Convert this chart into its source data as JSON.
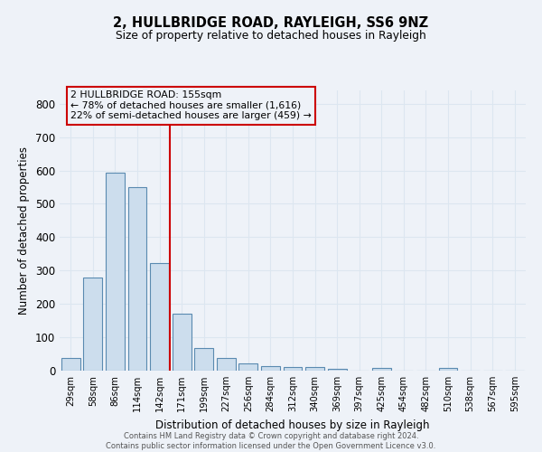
{
  "title": "2, HULLBRIDGE ROAD, RAYLEIGH, SS6 9NZ",
  "subtitle": "Size of property relative to detached houses in Rayleigh",
  "xlabel": "Distribution of detached houses by size in Rayleigh",
  "ylabel": "Number of detached properties",
  "footer_line1": "Contains HM Land Registry data © Crown copyright and database right 2024.",
  "footer_line2": "Contains public sector information licensed under the Open Government Licence v3.0.",
  "categories": [
    "29sqm",
    "58sqm",
    "86sqm",
    "114sqm",
    "142sqm",
    "171sqm",
    "199sqm",
    "227sqm",
    "256sqm",
    "284sqm",
    "312sqm",
    "340sqm",
    "369sqm",
    "397sqm",
    "425sqm",
    "454sqm",
    "482sqm",
    "510sqm",
    "538sqm",
    "567sqm",
    "595sqm"
  ],
  "values": [
    37,
    280,
    594,
    549,
    322,
    170,
    68,
    37,
    22,
    13,
    10,
    10,
    5,
    0,
    8,
    0,
    0,
    8,
    0,
    0,
    0
  ],
  "bar_color": "#ccdded",
  "bar_edge_color": "#5a8ab0",
  "vline_color": "#cc0000",
  "annotation_text": "2 HULLBRIDGE ROAD: 155sqm\n← 78% of detached houses are smaller (1,616)\n22% of semi-detached houses are larger (459) →",
  "annotation_box_color": "#cc0000",
  "ylim": [
    0,
    840
  ],
  "yticks": [
    0,
    100,
    200,
    300,
    400,
    500,
    600,
    700,
    800
  ],
  "grid_color": "#dce6f0",
  "background_color": "#eef2f8"
}
